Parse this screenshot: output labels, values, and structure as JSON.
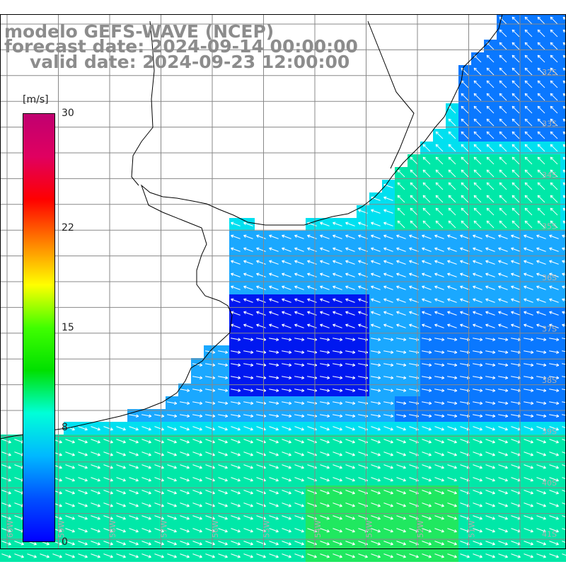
{
  "title": {
    "line1": "modelo GEFS-WAVE (NCEP)",
    "line2": "forecast date: 2024-09-14 00:00:00",
    "line3": "valid date: 2024-09-23 12:00:00"
  },
  "colorbar": {
    "unit": "[m/s]",
    "min": 0,
    "max": 30,
    "tick_labels": [
      "30",
      "22",
      "15",
      "8",
      "0"
    ],
    "tick_values": [
      30,
      22,
      15,
      8,
      0
    ],
    "gradient": [
      "#0000ff",
      "#0050ff",
      "#00b8ff",
      "#00ffd8",
      "#00e000",
      "#40ff00",
      "#ffff00",
      "#ff8000",
      "#ff0000",
      "#e00060",
      "#c00070"
    ]
  },
  "map": {
    "lat_labels": [
      "32S",
      "33S",
      "34S",
      "35S",
      "36S",
      "37S",
      "38S",
      "39S",
      "40S",
      "41S"
    ],
    "lon_labels": [
      "60W",
      "59W",
      "58W",
      "57W",
      "56W",
      "55W",
      "54W",
      "53W",
      "52W",
      "51W"
    ],
    "ocean_colors": {
      "calm": "#0018f0",
      "light": "#0a78ff",
      "moderate": "#1aa8ff",
      "fresh": "#00e0f0",
      "strong": "#00e8a8",
      "stronger": "#20e860"
    },
    "land_color": "#ffffff",
    "grid_color": "#888888",
    "coast_color": "#000000"
  }
}
